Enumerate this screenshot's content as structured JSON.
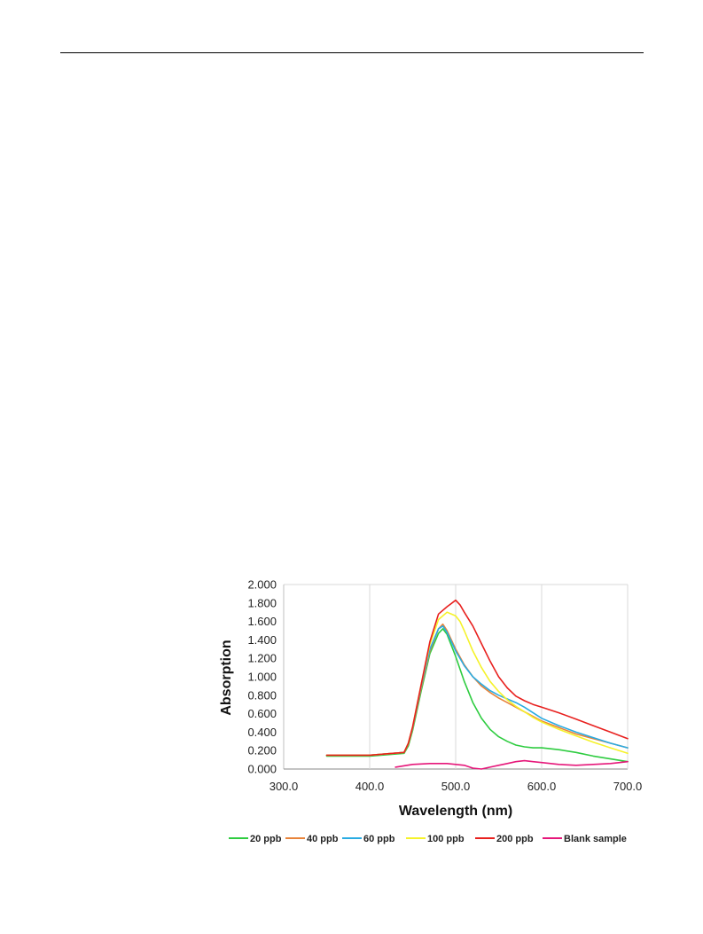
{
  "chart_data": {
    "type": "line",
    "xlabel": "Wavelength (nm)",
    "ylabel": "Absorption",
    "xlim": [
      300,
      700
    ],
    "ylim": [
      0,
      2
    ],
    "x_ticks": [
      "300.0",
      "400.0",
      "500.0",
      "600.0",
      "700.0"
    ],
    "y_ticks": [
      "0.000",
      "0.200",
      "0.400",
      "0.600",
      "0.800",
      "1.000",
      "1.200",
      "1.400",
      "1.600",
      "1.800",
      "2.000"
    ],
    "grid": "vertical",
    "legend_position": "bottom",
    "series": [
      {
        "name": "20 ppb",
        "color": "#2ecc40",
        "x": [
          350,
          400,
          440,
          445,
          450,
          460,
          470,
          480,
          485,
          490,
          500,
          510,
          520,
          530,
          540,
          550,
          560,
          570,
          580,
          590,
          600,
          620,
          640,
          660,
          680,
          700
        ],
        "y": [
          0.14,
          0.14,
          0.17,
          0.25,
          0.42,
          0.85,
          1.25,
          1.47,
          1.52,
          1.46,
          1.22,
          0.95,
          0.72,
          0.55,
          0.43,
          0.35,
          0.3,
          0.26,
          0.24,
          0.23,
          0.23,
          0.21,
          0.18,
          0.14,
          0.11,
          0.08
        ]
      },
      {
        "name": "40 ppb",
        "color": "#e8833a",
        "x": [
          350,
          400,
          440,
          445,
          450,
          460,
          470,
          480,
          485,
          490,
          500,
          510,
          520,
          530,
          540,
          550,
          560,
          570,
          580,
          590,
          600,
          620,
          640,
          660,
          680,
          700
        ],
        "y": [
          0.15,
          0.15,
          0.18,
          0.27,
          0.44,
          0.88,
          1.28,
          1.52,
          1.57,
          1.5,
          1.3,
          1.13,
          1.0,
          0.9,
          0.83,
          0.77,
          0.72,
          0.67,
          0.62,
          0.57,
          0.52,
          0.45,
          0.38,
          0.33,
          0.28,
          0.23
        ]
      },
      {
        "name": "60 ppb",
        "color": "#29abe2",
        "x": [
          350,
          400,
          440,
          445,
          450,
          460,
          470,
          480,
          485,
          490,
          500,
          510,
          520,
          530,
          540,
          550,
          560,
          570,
          580,
          590,
          600,
          620,
          640,
          660,
          680,
          700
        ],
        "y": [
          0.15,
          0.15,
          0.18,
          0.28,
          0.45,
          0.9,
          1.3,
          1.52,
          1.55,
          1.48,
          1.28,
          1.12,
          1.0,
          0.92,
          0.85,
          0.8,
          0.76,
          0.72,
          0.67,
          0.61,
          0.55,
          0.47,
          0.4,
          0.34,
          0.28,
          0.23
        ]
      },
      {
        "name": "100 ppb",
        "color": "#f5f22a",
        "x": [
          350,
          400,
          440,
          445,
          450,
          460,
          470,
          480,
          490,
          500,
          505,
          510,
          520,
          530,
          540,
          550,
          560,
          570,
          580,
          590,
          600,
          620,
          640,
          660,
          680,
          700
        ],
        "y": [
          0.15,
          0.15,
          0.18,
          0.28,
          0.46,
          0.92,
          1.35,
          1.62,
          1.7,
          1.66,
          1.6,
          1.5,
          1.28,
          1.1,
          0.95,
          0.84,
          0.75,
          0.68,
          0.62,
          0.56,
          0.51,
          0.43,
          0.36,
          0.29,
          0.23,
          0.17
        ]
      },
      {
        "name": "200 ppb",
        "color": "#e8201e",
        "x": [
          350,
          400,
          440,
          445,
          450,
          460,
          470,
          480,
          490,
          500,
          505,
          510,
          520,
          530,
          540,
          550,
          560,
          570,
          580,
          590,
          600,
          620,
          640,
          660,
          680,
          700
        ],
        "y": [
          0.15,
          0.15,
          0.18,
          0.28,
          0.46,
          0.92,
          1.38,
          1.68,
          1.76,
          1.83,
          1.78,
          1.7,
          1.55,
          1.36,
          1.17,
          1.0,
          0.88,
          0.79,
          0.74,
          0.7,
          0.67,
          0.61,
          0.54,
          0.47,
          0.4,
          0.33
        ]
      },
      {
        "name": "Blank sample",
        "color": "#e6177a",
        "x": [
          430,
          450,
          470,
          490,
          510,
          520,
          530,
          540,
          550,
          560,
          570,
          580,
          590,
          600,
          620,
          640,
          660,
          680,
          700
        ],
        "y": [
          0.02,
          0.05,
          0.06,
          0.06,
          0.04,
          0.01,
          0.0,
          0.02,
          0.04,
          0.06,
          0.08,
          0.09,
          0.08,
          0.07,
          0.05,
          0.04,
          0.05,
          0.06,
          0.08
        ]
      }
    ]
  }
}
